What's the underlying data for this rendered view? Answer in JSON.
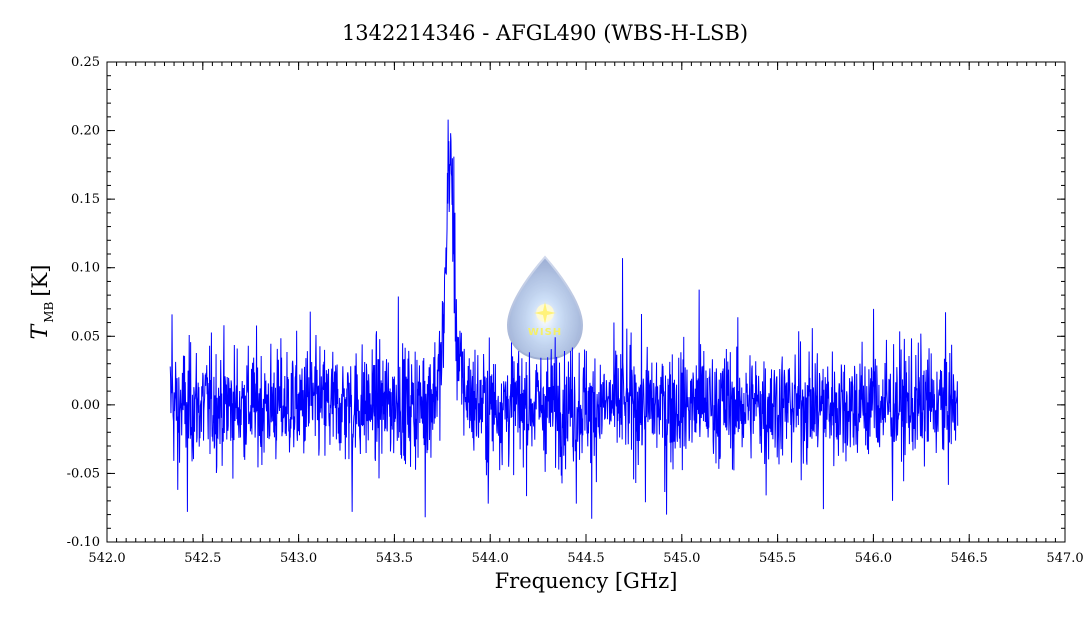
{
  "chart_data": {
    "type": "line",
    "title": "1342214346 - AFGL490 (WBS-H-LSB)",
    "xlabel": "Frequency [GHz]",
    "ylabel_main": "T",
    "ylabel_sub": "MB",
    "ylabel_unit": "[K]",
    "xlim": [
      542.0,
      547.0
    ],
    "ylim": [
      -0.1,
      0.25
    ],
    "xticks": [
      542.0,
      542.5,
      543.0,
      543.5,
      544.0,
      544.5,
      545.0,
      545.5,
      546.0,
      546.5,
      547.0
    ],
    "xtick_labels": [
      "542.0",
      "542.5",
      "543.0",
      "543.5",
      "544.0",
      "544.5",
      "545.0",
      "545.5",
      "546.0",
      "546.5",
      "547.0"
    ],
    "yticks": [
      -0.1,
      -0.05,
      0.0,
      0.05,
      0.1,
      0.15,
      0.2,
      0.25
    ],
    "ytick_labels": [
      "-0.10",
      "-0.05",
      "0.00",
      "0.05",
      "0.10",
      "0.15",
      "0.20",
      "0.25"
    ],
    "grid": false,
    "series": [
      {
        "color": "#0000ff",
        "x_start": 542.33,
        "x_end": 546.44,
        "noise_rms": 0.028,
        "line_center": 543.79,
        "line_peak": 0.205,
        "line_fwhm": 0.045,
        "spikes": [
          {
            "x": 542.34,
            "y": 0.066
          },
          {
            "x": 542.37,
            "y": -0.062
          },
          {
            "x": 542.42,
            "y": -0.078
          },
          {
            "x": 543.06,
            "y": 0.068
          },
          {
            "x": 543.28,
            "y": -0.078
          },
          {
            "x": 543.52,
            "y": 0.079
          },
          {
            "x": 543.66,
            "y": -0.082
          },
          {
            "x": 543.78,
            "y": 0.208
          },
          {
            "x": 543.81,
            "y": 0.181
          },
          {
            "x": 543.99,
            "y": -0.072
          },
          {
            "x": 544.45,
            "y": -0.072
          },
          {
            "x": 544.53,
            "y": -0.083
          },
          {
            "x": 544.69,
            "y": 0.107
          },
          {
            "x": 544.81,
            "y": -0.071
          },
          {
            "x": 544.92,
            "y": -0.08
          },
          {
            "x": 545.09,
            "y": 0.084
          },
          {
            "x": 545.44,
            "y": -0.066
          },
          {
            "x": 545.74,
            "y": -0.076
          },
          {
            "x": 546.0,
            "y": 0.07
          },
          {
            "x": 546.1,
            "y": -0.07
          }
        ]
      }
    ]
  },
  "watermark": {
    "text": "WISH",
    "star_color": "#fff8a0"
  }
}
